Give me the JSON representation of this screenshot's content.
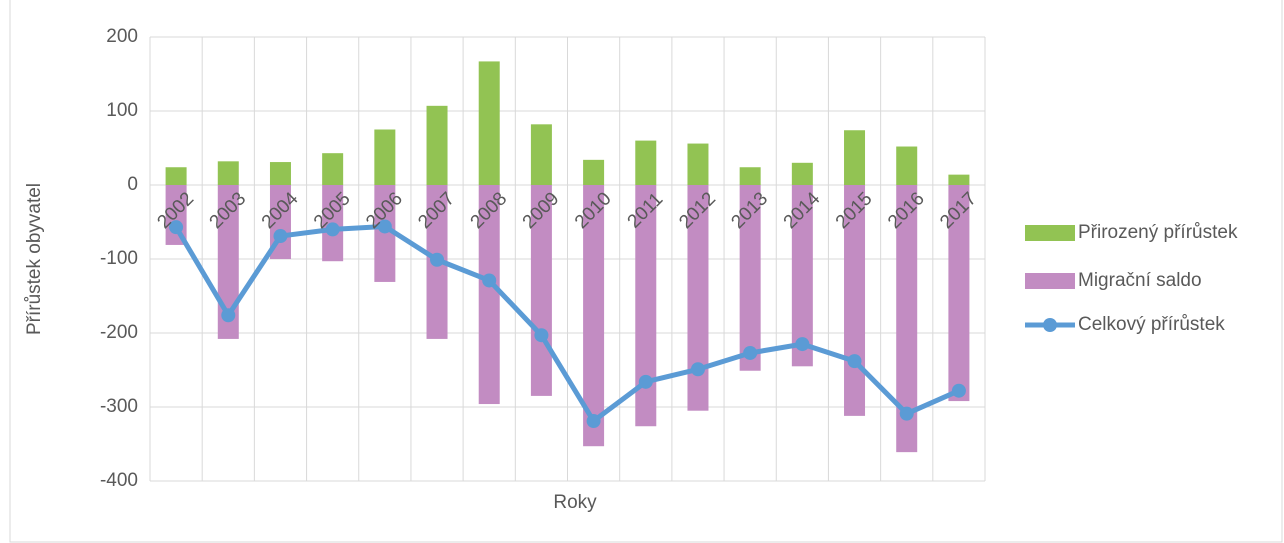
{
  "chart_data": {
    "type": "bar_line",
    "ylabel": "Přírůstek obyvatel",
    "xlabel": "Roky",
    "categories": [
      "2002",
      "2003",
      "2004",
      "2005",
      "2006",
      "2007",
      "2008",
      "2009",
      "2010",
      "2011",
      "2012",
      "2013",
      "2014",
      "2015",
      "2016",
      "2017"
    ],
    "series": [
      {
        "name": "Přirozený přírůstek",
        "color": "#92c353",
        "kind": "bar",
        "values": [
          24,
          32,
          31,
          43,
          75,
          107,
          167,
          82,
          34,
          60,
          56,
          24,
          30,
          74,
          52,
          14
        ]
      },
      {
        "name": "Migrační saldo",
        "color": "#c28cc2",
        "kind": "bar",
        "values": [
          -81,
          -208,
          -100,
          -103,
          -131,
          -208,
          -296,
          -285,
          -353,
          -326,
          -305,
          -251,
          -245,
          -312,
          -361,
          -292
        ]
      },
      {
        "name": "Celkový přírůstek",
        "color": "#5b9bd5",
        "kind": "line",
        "values": [
          -57,
          -176,
          -69,
          -60,
          -56,
          -101,
          -129,
          -203,
          -319,
          -266,
          -249,
          -227,
          -215,
          -238,
          -309,
          -278
        ]
      }
    ],
    "ylim": [
      -400,
      200
    ],
    "yticks": [
      -400,
      -300,
      -200,
      -100,
      0,
      100,
      200
    ],
    "grid": true,
    "legend": "right"
  }
}
